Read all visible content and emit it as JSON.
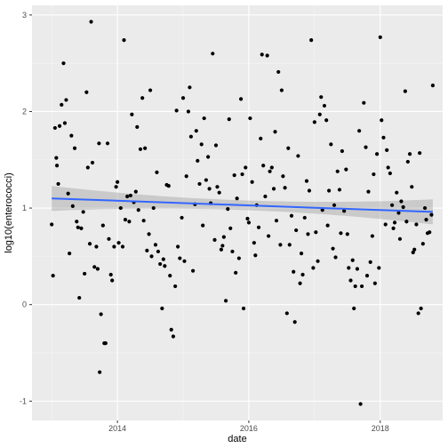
{
  "chart_data": {
    "type": "scatter",
    "xlabel": "date",
    "ylabel": "log10(enterococci)",
    "x_unit": "year (decimal)",
    "xlim": [
      2012.7,
      2018.95
    ],
    "ylim": [
      -1.2,
      3.1
    ],
    "x_ticks": [
      {
        "value": 2014,
        "label": "2014"
      },
      {
        "value": 2016,
        "label": "2016"
      },
      {
        "value": 2018,
        "label": "2018"
      }
    ],
    "y_ticks": [
      {
        "value": -1,
        "label": "-1"
      },
      {
        "value": 0,
        "label": "0"
      },
      {
        "value": 1,
        "label": "1"
      },
      {
        "value": 2,
        "label": "2"
      },
      {
        "value": 3,
        "label": "3"
      }
    ],
    "grid": true,
    "background": "#ebebeb",
    "point_color": "#000000",
    "trend_color": "#3366ff",
    "ribbon_color": "#999999",
    "trend": {
      "method": "linear fit with confidence band",
      "points": [
        [
          2013.0,
          1.1
        ],
        [
          2018.8,
          0.96
        ]
      ],
      "band_halfwidth_ends": 0.13,
      "band_halfwidth_mid": 0.05
    },
    "series": [
      {
        "points": [
          [
            2013.0,
            0.83
          ],
          [
            2013.02,
            0.3
          ],
          [
            2013.05,
            1.83
          ],
          [
            2013.07,
            1.52
          ],
          [
            2013.08,
            1.44
          ],
          [
            2013.1,
            1.25
          ],
          [
            2013.12,
            1.85
          ],
          [
            2013.15,
            2.07
          ],
          [
            2013.18,
            2.5
          ],
          [
            2013.2,
            1.88
          ],
          [
            2013.22,
            2.12
          ],
          [
            2013.25,
            1.15
          ],
          [
            2013.27,
            0.53
          ],
          [
            2013.3,
            1.75
          ],
          [
            2013.32,
            1.02
          ],
          [
            2013.35,
            1.62
          ],
          [
            2013.38,
            0.86
          ],
          [
            2013.4,
            0.8
          ],
          [
            2013.42,
            0.07
          ],
          [
            2013.45,
            0.79
          ],
          [
            2013.48,
            0.96
          ],
          [
            2013.5,
            0.32
          ],
          [
            2013.53,
            2.2
          ],
          [
            2013.55,
            1.42
          ],
          [
            2013.58,
            0.63
          ],
          [
            2013.6,
            2.93
          ],
          [
            2013.62,
            1.47
          ],
          [
            2013.65,
            0.39
          ],
          [
            2013.68,
            0.6
          ],
          [
            2013.7,
            0.37
          ],
          [
            2013.72,
            1.67
          ],
          [
            2013.73,
            -0.7
          ],
          [
            2013.75,
            -0.1
          ],
          [
            2013.78,
            0.82
          ],
          [
            2013.8,
            -0.4
          ],
          [
            2013.82,
            -0.4
          ],
          [
            2013.85,
            1.67
          ],
          [
            2013.87,
            0.68
          ],
          [
            2013.9,
            0.31
          ],
          [
            2013.92,
            0.25
          ],
          [
            2013.95,
            0.6
          ],
          [
            2013.98,
            1.22
          ],
          [
            2014.0,
            1.27
          ],
          [
            2014.02,
            0.64
          ],
          [
            2014.05,
            1.0
          ],
          [
            2014.08,
            0.6
          ],
          [
            2014.1,
            2.74
          ],
          [
            2014.12,
            0.88
          ],
          [
            2014.15,
            1.12
          ],
          [
            2014.18,
            0.86
          ],
          [
            2014.2,
            1.13
          ],
          [
            2014.22,
            1.97
          ],
          [
            2014.25,
            1.06
          ],
          [
            2014.28,
            1.17
          ],
          [
            2014.3,
            1.84
          ],
          [
            2014.32,
            0.98
          ],
          [
            2014.35,
            1.61
          ],
          [
            2014.38,
            2.14
          ],
          [
            2014.4,
            0.87
          ],
          [
            2014.42,
            1.62
          ],
          [
            2014.45,
            0.56
          ],
          [
            2014.48,
            0.73
          ],
          [
            2014.5,
            2.22
          ],
          [
            2014.52,
            0.5
          ],
          [
            2014.55,
            1.0
          ],
          [
            2014.58,
            0.62
          ],
          [
            2014.6,
            1.37
          ],
          [
            2014.62,
            0.55
          ],
          [
            2014.65,
            0.42
          ],
          [
            2014.68,
            -0.04
          ],
          [
            2014.7,
            0.47
          ],
          [
            2014.72,
            0.4
          ],
          [
            2014.75,
            1.24
          ],
          [
            2014.78,
            1.23
          ],
          [
            2014.8,
            0.3
          ],
          [
            2014.82,
            -0.26
          ],
          [
            2014.85,
            -0.33
          ],
          [
            2014.88,
            0.19
          ],
          [
            2014.9,
            2.01
          ],
          [
            2014.92,
            0.6
          ],
          [
            2014.95,
            0.48
          ],
          [
            2014.98,
            0.9
          ],
          [
            2015.0,
            2.14
          ],
          [
            2015.02,
            0.45
          ],
          [
            2015.05,
            1.33
          ],
          [
            2015.08,
            2.0
          ],
          [
            2015.1,
            2.25
          ],
          [
            2015.12,
            1.74
          ],
          [
            2015.15,
            0.35
          ],
          [
            2015.18,
            1.04
          ],
          [
            2015.2,
            1.8
          ],
          [
            2015.22,
            1.49
          ],
          [
            2015.25,
            1.25
          ],
          [
            2015.28,
            1.66
          ],
          [
            2015.3,
            0.82
          ],
          [
            2015.32,
            1.93
          ],
          [
            2015.35,
            1.29
          ],
          [
            2015.38,
            1.53
          ],
          [
            2015.4,
            1.2
          ],
          [
            2015.42,
            1.05
          ],
          [
            2015.45,
            2.6
          ],
          [
            2015.48,
            0.67
          ],
          [
            2015.5,
            1.65
          ],
          [
            2015.52,
            1.22
          ],
          [
            2015.55,
            1.16
          ],
          [
            2015.58,
            0.57
          ],
          [
            2015.6,
            0.61
          ],
          [
            2015.62,
            0.7
          ],
          [
            2015.65,
            0.04
          ],
          [
            2015.68,
            0.99
          ],
          [
            2015.7,
            1.92
          ],
          [
            2015.72,
            0.79
          ],
          [
            2015.75,
            0.55
          ],
          [
            2015.78,
            1.34
          ],
          [
            2015.8,
            0.33
          ],
          [
            2015.82,
            1.1
          ],
          [
            2015.85,
            0.48
          ],
          [
            2015.88,
            2.13
          ],
          [
            2015.9,
            1.35
          ],
          [
            2015.92,
            -0.04
          ],
          [
            2015.95,
            1.42
          ],
          [
            2015.98,
            0.89
          ],
          [
            2016.0,
            0.85
          ],
          [
            2016.02,
            1.93
          ],
          [
            2016.05,
            1.27
          ],
          [
            2016.08,
            0.64
          ],
          [
            2016.1,
            0.51
          ],
          [
            2016.12,
            1.03
          ],
          [
            2016.15,
            0.8
          ],
          [
            2016.18,
            1.72
          ],
          [
            2016.2,
            2.59
          ],
          [
            2016.22,
            1.44
          ],
          [
            2016.25,
            1.12
          ],
          [
            2016.28,
            2.58
          ],
          [
            2016.3,
            0.71
          ],
          [
            2016.32,
            1.38
          ],
          [
            2016.35,
            1.42
          ],
          [
            2016.38,
            1.2
          ],
          [
            2016.4,
            1.79
          ],
          [
            2016.42,
            0.87
          ],
          [
            2016.45,
            2.41
          ],
          [
            2016.48,
            0.62
          ],
          [
            2016.5,
            2.22
          ],
          [
            2016.52,
            1.33
          ],
          [
            2016.55,
            1.21
          ],
          [
            2016.58,
            -0.09
          ],
          [
            2016.6,
            1.62
          ],
          [
            2016.62,
            0.62
          ],
          [
            2016.65,
            0.92
          ],
          [
            2016.68,
            0.34
          ],
          [
            2016.7,
            -0.18
          ],
          [
            2016.72,
            0.77
          ],
          [
            2016.75,
            1.54
          ],
          [
            2016.78,
            0.22
          ],
          [
            2016.8,
            0.53
          ],
          [
            2016.82,
            0.31
          ],
          [
            2016.85,
            0.9
          ],
          [
            2016.88,
            1.28
          ],
          [
            2016.9,
            0.73
          ],
          [
            2016.92,
            1.18
          ],
          [
            2016.95,
            2.74
          ],
          [
            2016.98,
            0.38
          ],
          [
            2017.0,
            1.89
          ],
          [
            2017.02,
            0.75
          ],
          [
            2017.05,
            0.45
          ],
          [
            2017.08,
            1.97
          ],
          [
            2017.1,
            2.15
          ],
          [
            2017.12,
            0.98
          ],
          [
            2017.15,
            2.06
          ],
          [
            2017.18,
            1.91
          ],
          [
            2017.2,
            0.82
          ],
          [
            2017.22,
            1.18
          ],
          [
            2017.25,
            1.66
          ],
          [
            2017.28,
            0.58
          ],
          [
            2017.3,
            1.03
          ],
          [
            2017.32,
            0.49
          ],
          [
            2017.35,
            1.38
          ],
          [
            2017.38,
            1.19
          ],
          [
            2017.4,
            0.74
          ],
          [
            2017.42,
            1.59
          ],
          [
            2017.45,
            0.97
          ],
          [
            2017.48,
            1.4
          ],
          [
            2017.5,
            0.73
          ],
          [
            2017.52,
            0.38
          ],
          [
            2017.55,
            0.25
          ],
          [
            2017.58,
            0.46
          ],
          [
            2017.6,
            -0.04
          ],
          [
            2017.62,
            0.19
          ],
          [
            2017.65,
            0.37
          ],
          [
            2017.68,
            1.8
          ],
          [
            2017.7,
            -1.03
          ],
          [
            2017.72,
            0.19
          ],
          [
            2017.75,
            2.09
          ],
          [
            2017.78,
            1.63
          ],
          [
            2017.8,
            0.3
          ],
          [
            2017.82,
            1.17
          ],
          [
            2017.85,
            0.44
          ],
          [
            2017.88,
            0.71
          ],
          [
            2017.9,
            1.35
          ],
          [
            2017.92,
            0.22
          ],
          [
            2017.95,
            1.56
          ],
          [
            2017.98,
            0.38
          ],
          [
            2018.0,
            2.77
          ],
          [
            2018.02,
            1.91
          ],
          [
            2018.05,
            1.73
          ],
          [
            2018.08,
            0.83
          ],
          [
            2018.1,
            1.6
          ],
          [
            2018.12,
            1.42
          ],
          [
            2018.15,
            1.36
          ],
          [
            2018.18,
            1.03
          ],
          [
            2018.2,
            0.79
          ],
          [
            2018.22,
            0.85
          ],
          [
            2018.25,
            1.16
          ],
          [
            2018.28,
            0.95
          ],
          [
            2018.3,
            0.68
          ],
          [
            2018.32,
            1.07
          ],
          [
            2018.35,
            1.01
          ],
          [
            2018.38,
            2.21
          ],
          [
            2018.4,
            0.86
          ],
          [
            2018.42,
            1.48
          ],
          [
            2018.45,
            1.56
          ],
          [
            2018.48,
            1.22
          ],
          [
            2018.5,
            0.54
          ],
          [
            2018.52,
            0.57
          ],
          [
            2018.55,
            0.83
          ],
          [
            2018.58,
            -0.09
          ],
          [
            2018.6,
            1.57
          ],
          [
            2018.62,
            -0.04
          ],
          [
            2018.65,
            0.63
          ],
          [
            2018.68,
            1.0
          ],
          [
            2018.7,
            0.88
          ],
          [
            2018.72,
            0.74
          ],
          [
            2018.75,
            0.75
          ],
          [
            2018.78,
            0.93
          ],
          [
            2018.8,
            2.27
          ]
        ]
      }
    ]
  }
}
